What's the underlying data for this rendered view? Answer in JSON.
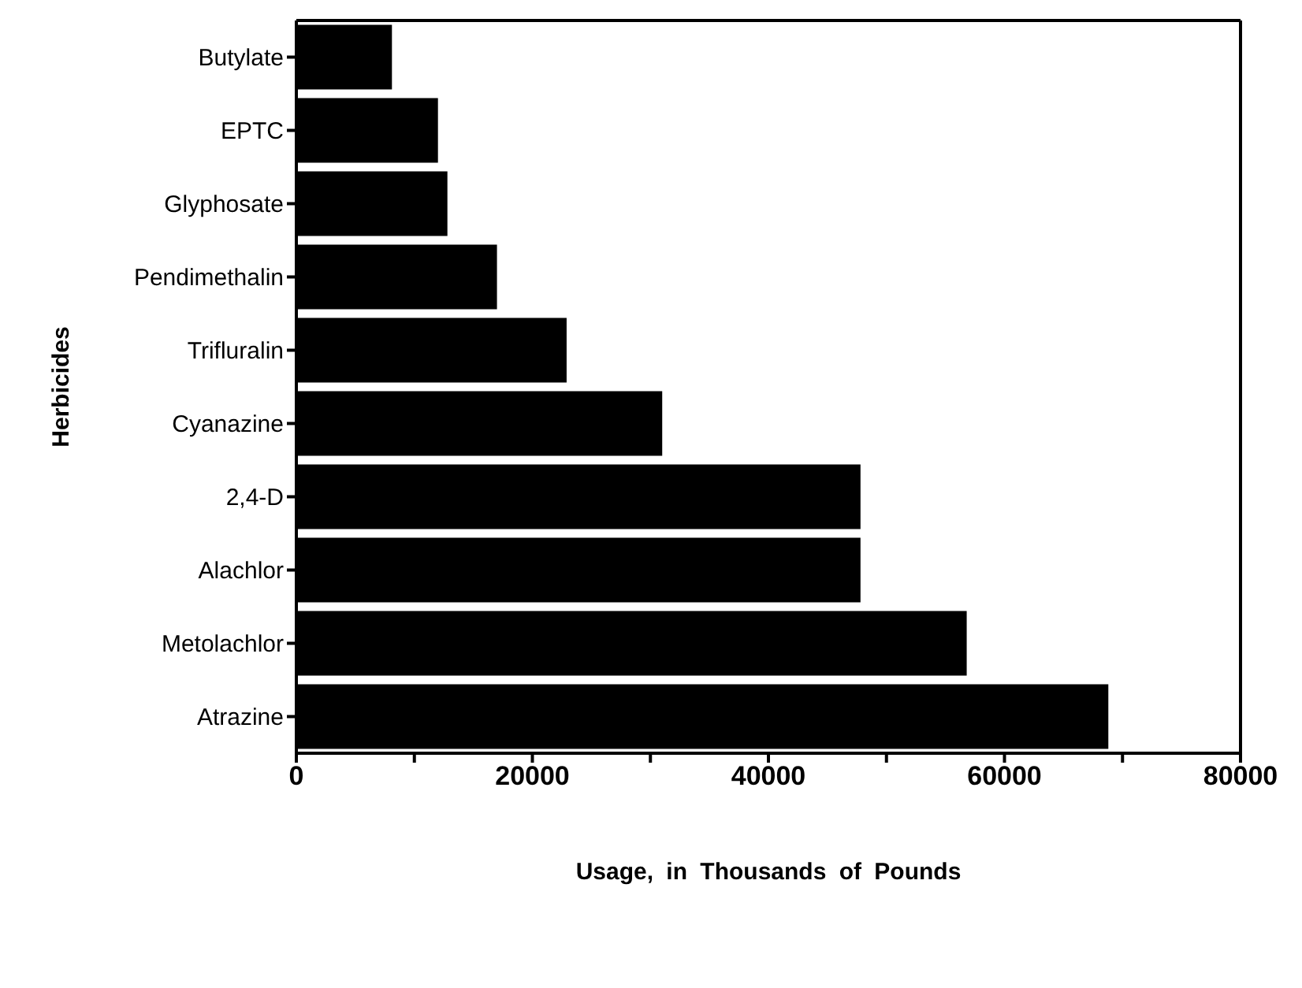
{
  "chart_data": {
    "type": "bar",
    "orientation": "horizontal",
    "xlabel": "Usage, in Thousands of Pounds",
    "ylabel": "Herbicides",
    "categories": [
      "Butylate",
      "EPTC",
      "Glyphosate",
      "Pendimethalin",
      "Trifluralin",
      "Cyanazine",
      "2,4-D",
      "Alachlor",
      "Metolachlor",
      "Atrazine"
    ],
    "values": [
      8100,
      12000,
      12800,
      17000,
      22900,
      31000,
      47800,
      47800,
      56800,
      68800
    ],
    "color": "#000000",
    "xlim": [
      0,
      80000
    ],
    "xticks": [
      0,
      {
        "value": 10000,
        "label": null
      },
      20000,
      {
        "value": 30000,
        "label": null
      },
      40000,
      {
        "value": 50000,
        "label": null
      },
      60000,
      {
        "value": 70000,
        "label": null
      },
      80000
    ],
    "grid": false
  }
}
